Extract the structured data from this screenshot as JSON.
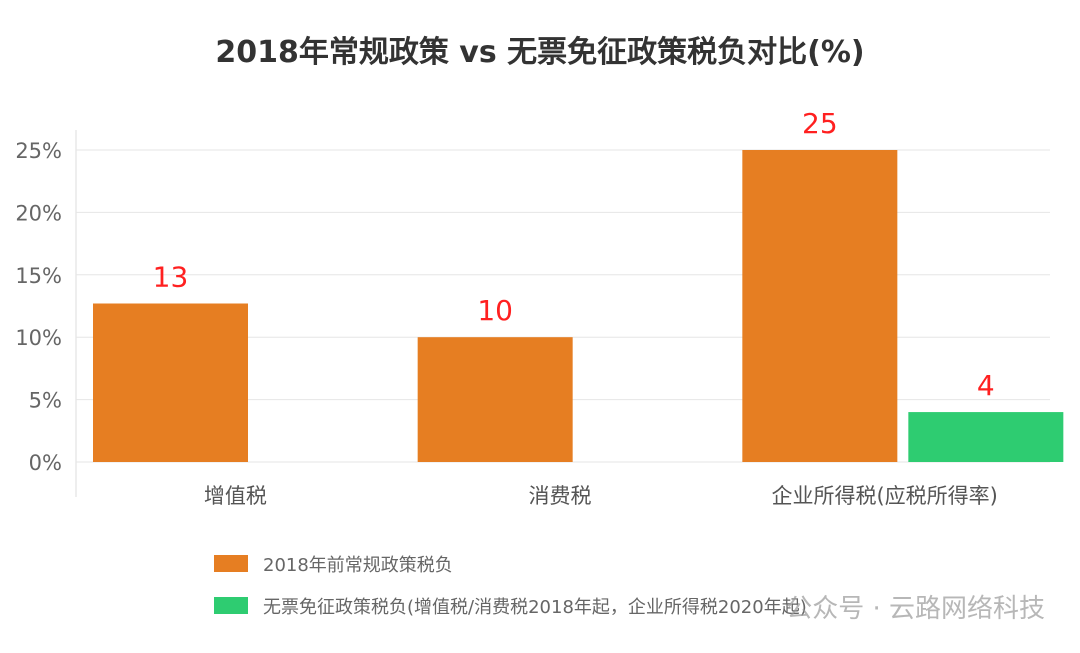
{
  "chart_data": {
    "type": "bar",
    "title": "2018年常规政策 vs 无票免征政策税负对比(%)",
    "categories": [
      "增值税",
      "消费税",
      "企业所得税(应税所得率)"
    ],
    "series": [
      {
        "name": "2018年前常规政策税负",
        "values": [
          12.7,
          10,
          25
        ],
        "labels": [
          "13",
          "10",
          "25"
        ],
        "color": "#E67E22"
      },
      {
        "name": "无票免征政策税负(增值税/消费税2018年起，企业所得税2020年起)",
        "values": [
          null,
          null,
          4
        ],
        "labels": [
          "",
          "",
          "4"
        ],
        "color": "#2ECC71"
      }
    ],
    "ylim": [
      0,
      25
    ],
    "yticks": [
      0,
      5,
      10,
      15,
      20,
      25
    ],
    "ytick_labels": [
      "0%",
      "5%",
      "10%",
      "15%",
      "20%",
      "25%"
    ],
    "grid": true,
    "legend_position": "bottom",
    "data_label_color": "#FF2020"
  },
  "watermark": "公众号 · 云路网络科技"
}
